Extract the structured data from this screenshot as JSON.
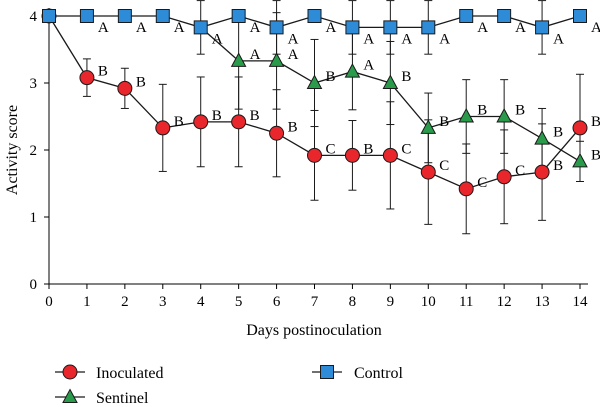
{
  "chart_data": {
    "type": "line",
    "xlabel": "Days postinoculation",
    "ylabel": "Activity score",
    "xlim": [
      0,
      14
    ],
    "ylim": [
      0,
      4
    ],
    "x_ticks": [
      "0",
      "1",
      "2",
      "3",
      "4",
      "5",
      "6",
      "7",
      "8",
      "9",
      "10",
      "11",
      "12",
      "13",
      "14"
    ],
    "y_ticks": [
      "0",
      "1",
      "2",
      "3",
      "4"
    ],
    "grid": false,
    "legend_position": "bottom",
    "series": [
      {
        "name": "Inoculated",
        "marker": "circle",
        "color": "#e8262b",
        "x": [
          0,
          1,
          2,
          3,
          4,
          5,
          6,
          7,
          8,
          9,
          10,
          11,
          12,
          13,
          14
        ],
        "y": [
          4,
          3.08,
          2.92,
          2.33,
          2.42,
          2.42,
          2.25,
          1.92,
          1.92,
          1.92,
          1.67,
          1.42,
          1.6,
          1.67,
          2.33
        ],
        "err": [
          0,
          0.28,
          0.3,
          0.65,
          0.67,
          0.67,
          0.65,
          0.67,
          0.52,
          0.8,
          0.78,
          0.67,
          0.7,
          0.72,
          0.8
        ],
        "labels": [
          "",
          "B",
          "B",
          "B",
          "B",
          "B",
          "B",
          "C",
          "B",
          "C",
          "C",
          "C",
          "C",
          "B",
          "B"
        ]
      },
      {
        "name": "Sentinel",
        "marker": "triangle",
        "color": "#2a9a4b",
        "x": [
          5,
          6,
          7,
          8,
          9,
          10,
          11,
          12,
          13,
          14
        ],
        "y": [
          3.33,
          3.33,
          3.0,
          3.17,
          3.0,
          2.33,
          2.5,
          2.5,
          2.17,
          1.83
        ],
        "err": [
          0.72,
          0.72,
          0.65,
          0.57,
          0.62,
          0.52,
          0.55,
          0.55,
          0.45,
          0.3
        ],
        "labels": [
          "A",
          "A",
          "B",
          "A",
          "B",
          "B",
          "B",
          "B",
          "B",
          "B"
        ]
      },
      {
        "name": "Control",
        "marker": "square",
        "color": "#2e8bd8",
        "x": [
          0,
          1,
          2,
          3,
          4,
          5,
          6,
          7,
          8,
          9,
          10,
          11,
          12,
          13,
          14
        ],
        "y": [
          4,
          4,
          4,
          4,
          3.83,
          4,
          3.83,
          4,
          3.83,
          3.83,
          3.83,
          4,
          4,
          3.83,
          4
        ],
        "err": [
          0,
          0,
          0,
          0,
          0.4,
          0,
          0.4,
          0,
          0.4,
          0.4,
          0.4,
          0,
          0,
          0.4,
          0
        ],
        "labels": [
          "",
          "A",
          "A",
          "A",
          "A",
          "A",
          "A",
          "A",
          "A",
          "A",
          "A",
          "A",
          "A",
          "A",
          "A"
        ]
      }
    ]
  }
}
